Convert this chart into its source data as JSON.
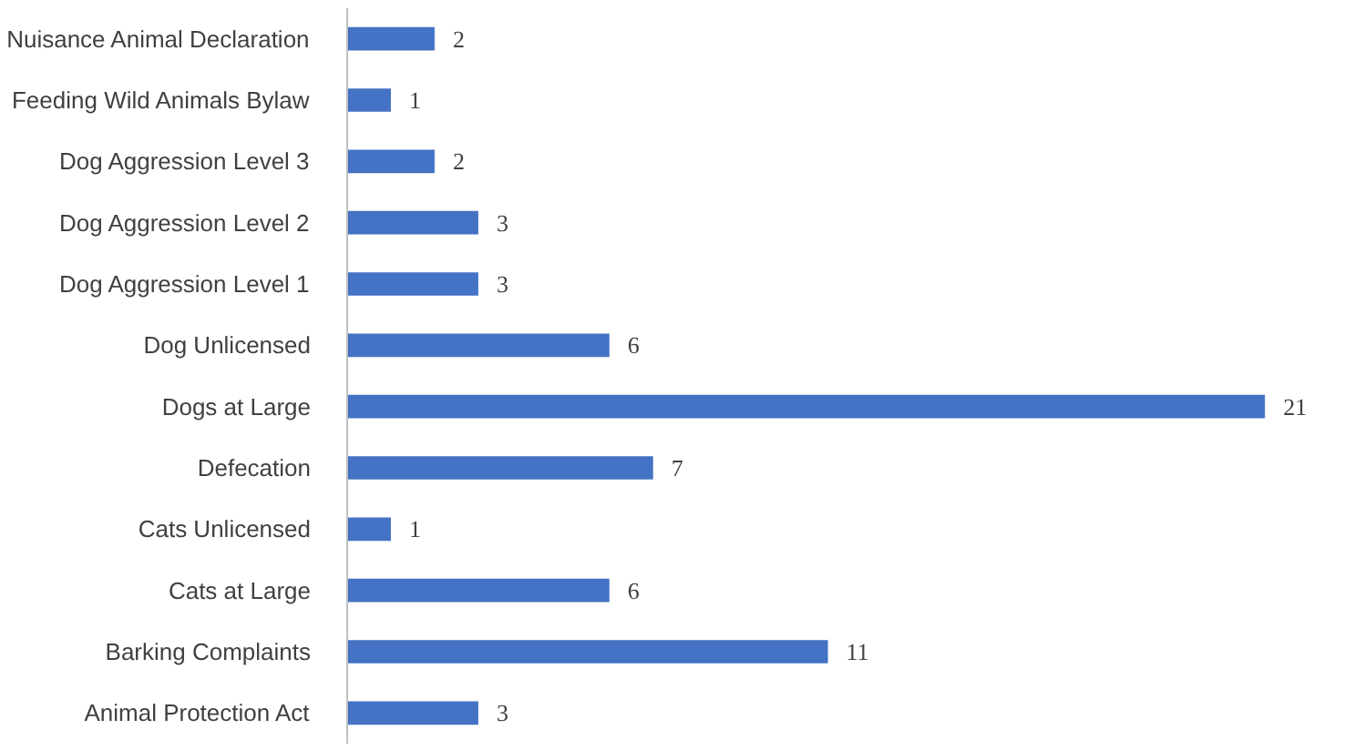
{
  "chart_data": {
    "type": "bar",
    "orientation": "horizontal",
    "categories": [
      "Nuisance Animal Declaration",
      "Feeding Wild Animals Bylaw",
      "Dog Aggression Level 3",
      "Dog Aggression Level 2",
      "Dog Aggression Level 1",
      "Dog Unlicensed",
      "Dogs at Large",
      "Defecation",
      "Cats Unlicensed",
      "Cats at Large",
      "Barking Complaints",
      "Animal Protection Act"
    ],
    "values": [
      2,
      1,
      2,
      3,
      3,
      6,
      21,
      7,
      1,
      6,
      11,
      3
    ],
    "color": "#4472c4",
    "data_labels": true,
    "grid": false,
    "tick_labels": "y"
  }
}
